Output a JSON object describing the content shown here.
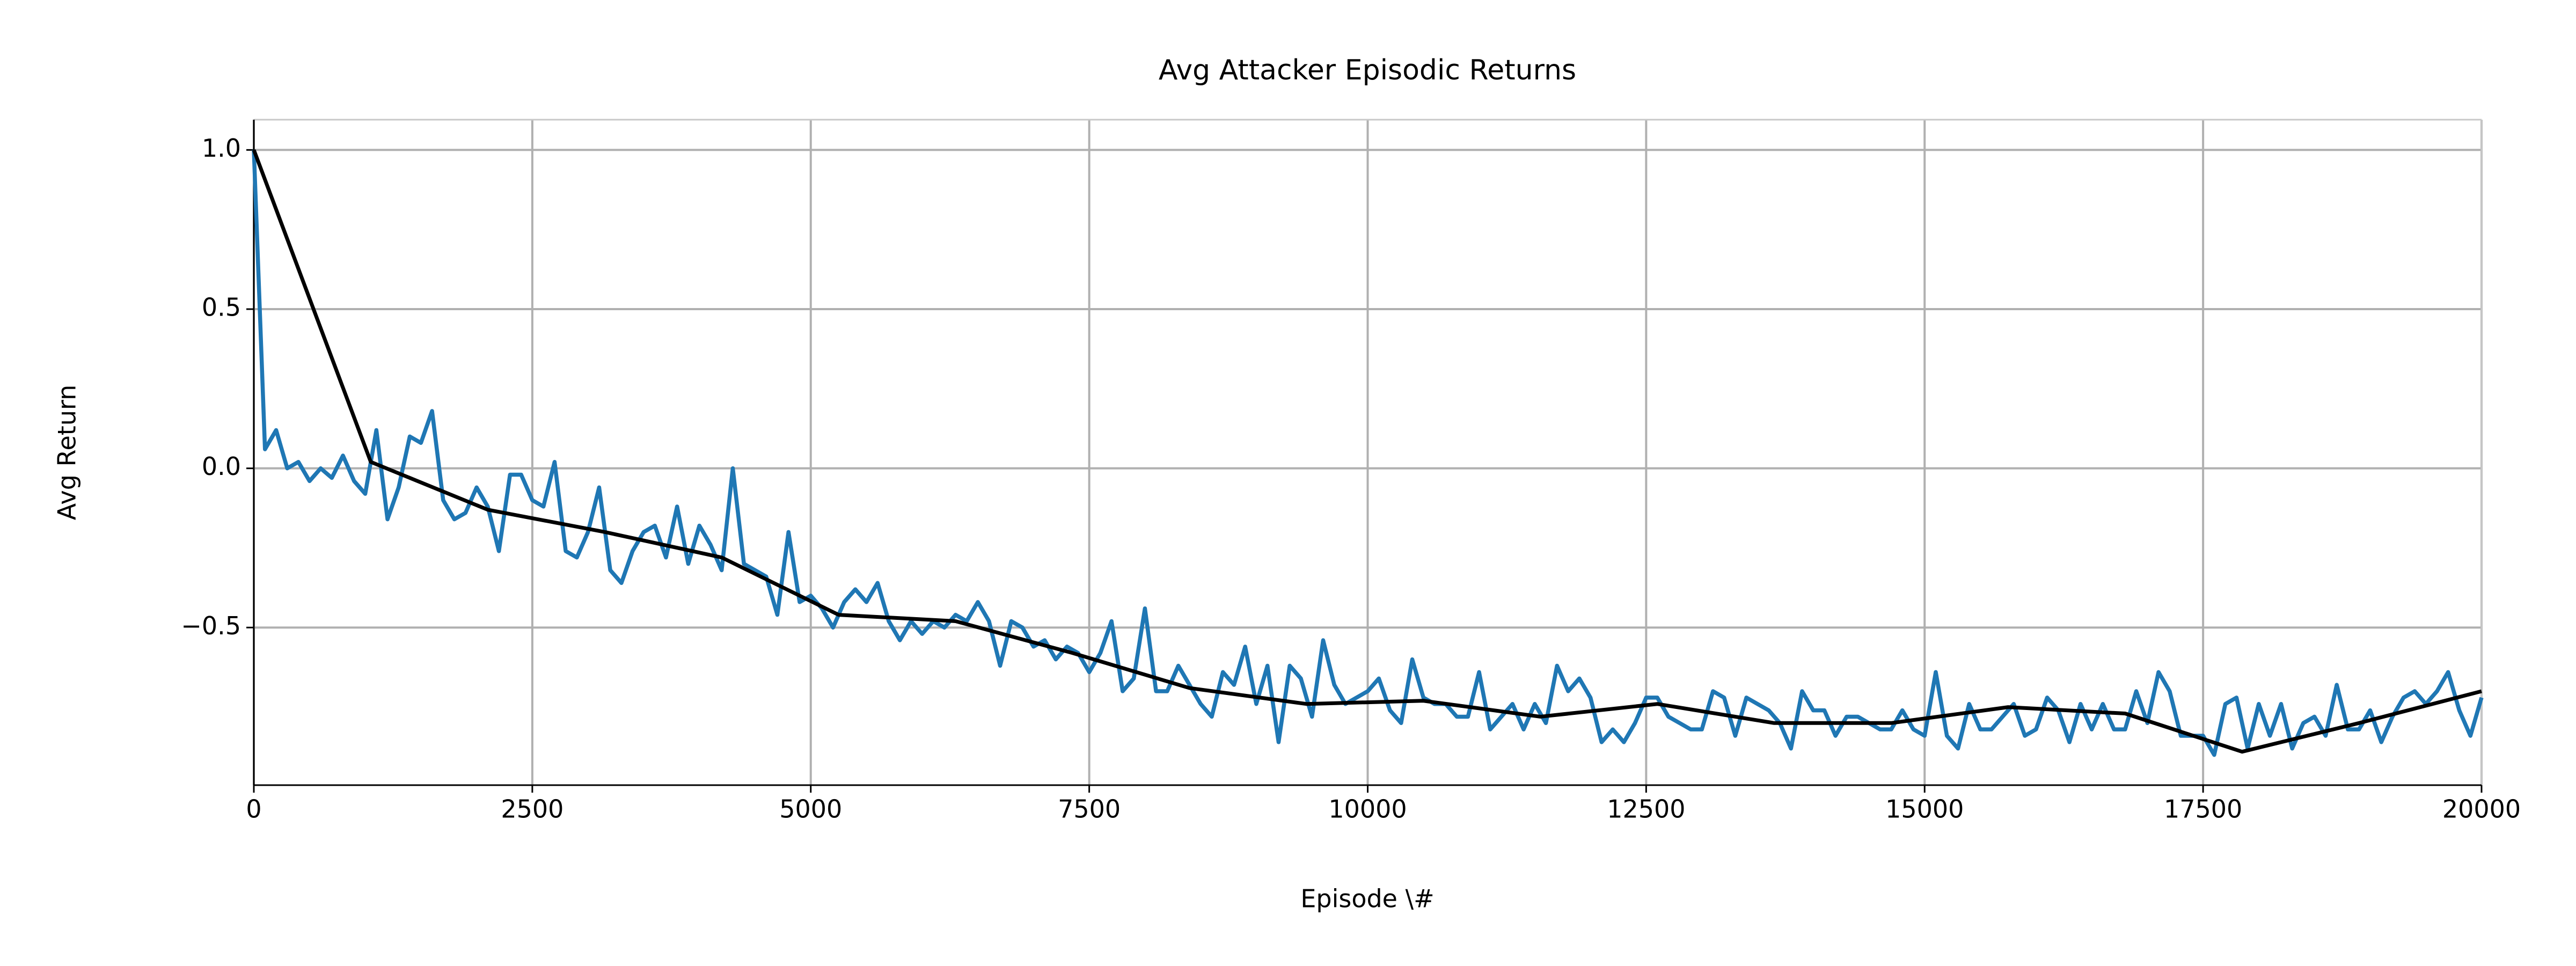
{
  "chart_data": {
    "type": "line",
    "title": "Avg Attacker Episodic Returns",
    "xlabel": "Episode \\#",
    "ylabel": "Avg Return",
    "xlim": [
      0,
      20000
    ],
    "xticks": [
      0,
      2500,
      5000,
      7500,
      10000,
      12500,
      15000,
      17500,
      20000
    ],
    "ylim": [
      -0.995,
      1.095
    ],
    "yticks": [
      {
        "value": -0.5,
        "label": "−0.5"
      },
      {
        "value": 0,
        "label": "0.0"
      },
      {
        "value": 0.5,
        "label": "0.5"
      },
      {
        "value": 1,
        "label": "1.0"
      }
    ],
    "grid": true,
    "series": [
      {
        "color": "#1f77b4",
        "x": [
          0,
          100,
          200,
          300,
          400,
          500,
          600,
          700,
          800,
          900,
          1000,
          1100,
          1200,
          1300,
          1400,
          1500,
          1600,
          1700,
          1800,
          1900,
          2000,
          2100,
          2200,
          2300,
          2400,
          2500,
          2600,
          2700,
          2800,
          2900,
          3000,
          3100,
          3200,
          3300,
          3400,
          3500,
          3600,
          3700,
          3800,
          3900,
          4000,
          4100,
          4200,
          4300,
          4400,
          4500,
          4600,
          4700,
          4800,
          4900,
          5000,
          5100,
          5200,
          5300,
          5400,
          5500,
          5600,
          5700,
          5800,
          5900,
          6000,
          6100,
          6200,
          6300,
          6400,
          6500,
          6600,
          6700,
          6800,
          6900,
          7000,
          7100,
          7200,
          7300,
          7400,
          7500,
          7600,
          7700,
          7800,
          7900,
          8000,
          8100,
          8200,
          8300,
          8400,
          8500,
          8600,
          8700,
          8800,
          8900,
          9000,
          9100,
          9200,
          9300,
          9400,
          9500,
          9600,
          9700,
          9800,
          9900,
          10000,
          10100,
          10200,
          10300,
          10400,
          10500,
          10600,
          10700,
          10800,
          10900,
          11000,
          11100,
          11200,
          11300,
          11400,
          11500,
          11600,
          11700,
          11800,
          11900,
          12000,
          12100,
          12200,
          12300,
          12400,
          12500,
          12600,
          12700,
          12800,
          12900,
          13000,
          13100,
          13200,
          13300,
          13400,
          13500,
          13600,
          13700,
          13800,
          13900,
          14000,
          14100,
          14200,
          14300,
          14400,
          14500,
          14600,
          14700,
          14800,
          14900,
          15000,
          15100,
          15200,
          15300,
          15400,
          15500,
          15600,
          15700,
          15800,
          15900,
          16000,
          16100,
          16200,
          16300,
          16400,
          16500,
          16600,
          16700,
          16800,
          16900,
          17000,
          17100,
          17200,
          17300,
          17400,
          17500,
          17600,
          17700,
          17800,
          17900,
          18000,
          18100,
          18200,
          18300,
          18400,
          18500,
          18600,
          18700,
          18800,
          18900,
          19000,
          19100,
          19200,
          19300,
          19400,
          19500,
          19600,
          19700,
          19800,
          19900,
          20000
        ],
        "values": [
          1.0,
          0.06,
          0.12,
          0.0,
          0.02,
          -0.04,
          0.0,
          -0.03,
          0.04,
          -0.04,
          -0.08,
          0.12,
          -0.16,
          -0.06,
          0.1,
          0.08,
          0.18,
          -0.1,
          -0.16,
          -0.14,
          -0.06,
          -0.12,
          -0.26,
          -0.02,
          -0.02,
          -0.1,
          -0.12,
          0.02,
          -0.26,
          -0.28,
          -0.2,
          -0.06,
          -0.32,
          -0.36,
          -0.26,
          -0.2,
          -0.18,
          -0.28,
          -0.12,
          -0.3,
          -0.18,
          -0.24,
          -0.32,
          0.0,
          -0.3,
          -0.32,
          -0.34,
          -0.46,
          -0.2,
          -0.42,
          -0.4,
          -0.44,
          -0.5,
          -0.42,
          -0.38,
          -0.42,
          -0.36,
          -0.48,
          -0.54,
          -0.48,
          -0.52,
          -0.48,
          -0.5,
          -0.46,
          -0.48,
          -0.42,
          -0.48,
          -0.62,
          -0.48,
          -0.5,
          -0.56,
          -0.54,
          -0.6,
          -0.56,
          -0.58,
          -0.64,
          -0.58,
          -0.48,
          -0.7,
          -0.66,
          -0.44,
          -0.7,
          -0.7,
          -0.62,
          -0.68,
          -0.74,
          -0.78,
          -0.64,
          -0.68,
          -0.56,
          -0.74,
          -0.62,
          -0.86,
          -0.62,
          -0.66,
          -0.78,
          -0.54,
          -0.68,
          -0.74,
          -0.72,
          -0.7,
          -0.66,
          -0.76,
          -0.8,
          -0.6,
          -0.72,
          -0.74,
          -0.74,
          -0.78,
          -0.78,
          -0.64,
          -0.82,
          -0.78,
          -0.74,
          -0.82,
          -0.74,
          -0.8,
          -0.62,
          -0.7,
          -0.66,
          -0.72,
          -0.86,
          -0.82,
          -0.86,
          -0.8,
          -0.72,
          -0.72,
          -0.78,
          -0.8,
          -0.82,
          -0.82,
          -0.7,
          -0.72,
          -0.84,
          -0.72,
          -0.74,
          -0.76,
          -0.8,
          -0.88,
          -0.7,
          -0.76,
          -0.76,
          -0.84,
          -0.78,
          -0.78,
          -0.8,
          -0.82,
          -0.82,
          -0.76,
          -0.82,
          -0.84,
          -0.64,
          -0.84,
          -0.88,
          -0.74,
          -0.82,
          -0.82,
          -0.78,
          -0.74,
          -0.84,
          -0.82,
          -0.72,
          -0.76,
          -0.86,
          -0.74,
          -0.82,
          -0.74,
          -0.82,
          -0.82,
          -0.7,
          -0.8,
          -0.64,
          -0.7,
          -0.84,
          -0.84,
          -0.84,
          -0.9,
          -0.74,
          -0.72,
          -0.88,
          -0.74,
          -0.84,
          -0.74,
          -0.88,
          -0.8,
          -0.78,
          -0.84,
          -0.68,
          -0.82,
          -0.82,
          -0.76,
          -0.86,
          -0.78,
          -0.72,
          -0.7,
          -0.74,
          -0.7,
          -0.64,
          -0.76,
          -0.84,
          -0.72
        ]
      },
      {
        "color": "#000000",
        "x": [
          0,
          1050,
          2100,
          3150,
          4200,
          5250,
          6300,
          7350,
          8400,
          9450,
          10500,
          11550,
          12600,
          13650,
          14700,
          15750,
          16800,
          17850,
          18900,
          20000
        ],
        "values": [
          1.0,
          0.02,
          -0.13,
          -0.2,
          -0.28,
          -0.46,
          -0.48,
          -0.58,
          -0.69,
          -0.74,
          -0.73,
          -0.78,
          -0.74,
          -0.8,
          -0.8,
          -0.75,
          -0.77,
          -0.89,
          -0.8,
          -0.7
        ]
      }
    ]
  }
}
